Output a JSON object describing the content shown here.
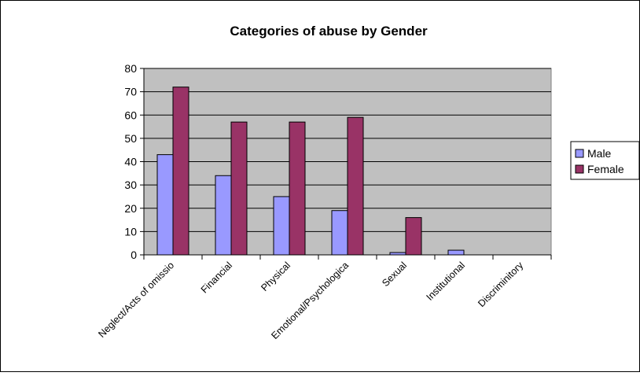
{
  "chart_data": {
    "type": "bar",
    "title": "Categories of abuse by Gender",
    "xlabel": "",
    "ylabel": "",
    "categories": [
      "Neglect/Acts of omissio",
      "Financial",
      "Physical",
      "Emotional/Psychologica",
      "Sexual",
      "Institutional",
      "Discriminitory"
    ],
    "series": [
      {
        "name": "Male",
        "color": "#9999ff",
        "values": [
          43,
          34,
          25,
          19,
          1,
          2,
          0
        ]
      },
      {
        "name": "Female",
        "color": "#993366",
        "values": [
          72,
          57,
          57,
          59,
          16,
          0,
          0
        ]
      }
    ],
    "ylim": [
      0,
      80
    ],
    "yticks": [
      0,
      10,
      20,
      30,
      40,
      50,
      60,
      70,
      80
    ],
    "grid": true,
    "plot_background": "#c0c0c0",
    "legend_position": "right"
  }
}
